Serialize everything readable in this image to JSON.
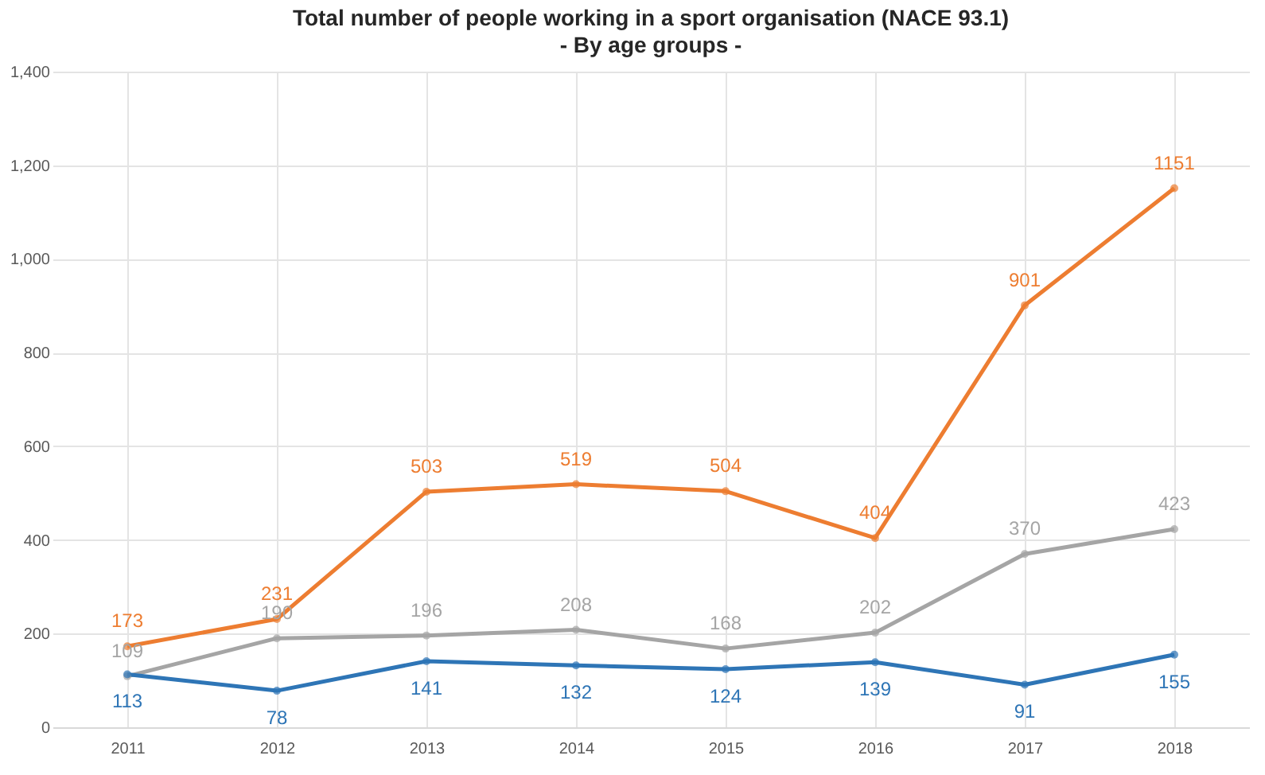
{
  "chart_data": {
    "type": "line",
    "title": "Total number of people working in a sport organisation (NACE 93.1)",
    "subtitle": "- By age groups -",
    "categories": [
      "2011",
      "2012",
      "2013",
      "2014",
      "2015",
      "2016",
      "2017",
      "2018"
    ],
    "series": [
      {
        "color": "#ed7d31",
        "values": [
          173,
          231,
          503,
          519,
          504,
          404,
          901,
          1151
        ]
      },
      {
        "color": "#a5a5a5",
        "values": [
          109,
          190,
          196,
          208,
          168,
          202,
          370,
          423
        ]
      },
      {
        "color": "#2e75b6",
        "values": [
          113,
          78,
          141,
          132,
          124,
          139,
          91,
          155
        ]
      }
    ],
    "ylim": [
      0,
      1400
    ],
    "yticks": [
      0,
      200,
      400,
      600,
      800,
      {
        "value": 1000,
        "label": "1,000"
      },
      {
        "value": 1200,
        "label": "1,200"
      },
      {
        "value": 1400,
        "label": "1,400"
      }
    ],
    "grid": true,
    "legend": false,
    "marker": "circle",
    "line_style": "solid",
    "data_labels": true
  }
}
